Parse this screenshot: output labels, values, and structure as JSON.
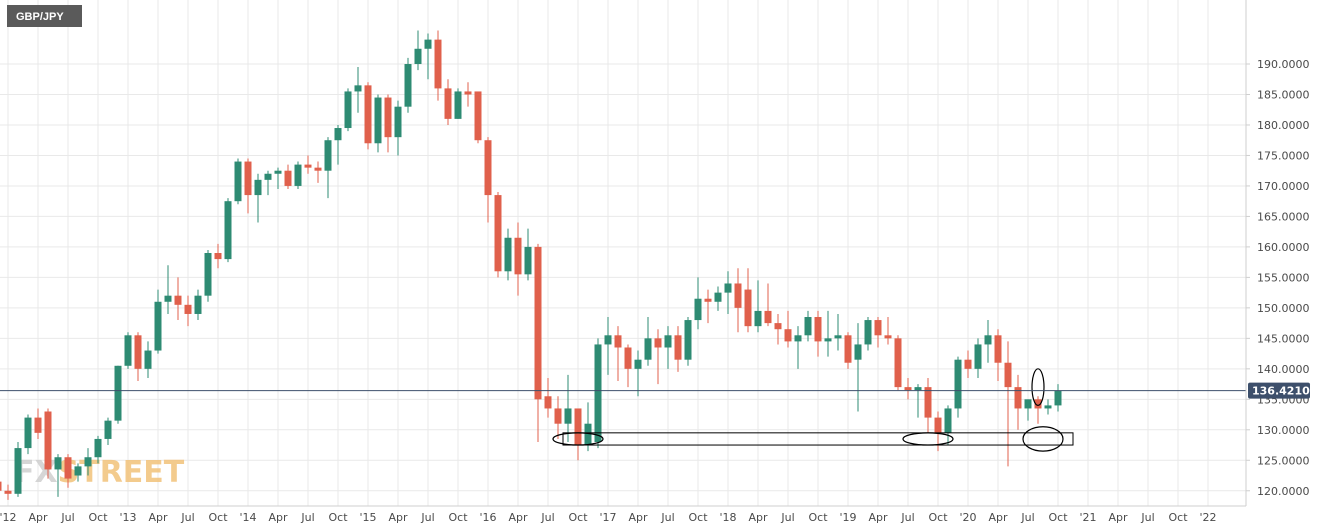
{
  "symbol_label": "GBP/JPY",
  "watermark": {
    "text": "FXSTREET",
    "highlight_color": "#f2c27a",
    "dim_color": "#cfcfcf"
  },
  "colors": {
    "up": "#2e8b73",
    "down": "#e0604c",
    "grid": "#e9e9e9",
    "axis": "#cfcfcf",
    "last_price_line": "#3d4f6b",
    "last_price_bg": "#3d4f6b"
  },
  "chart_data": {
    "type": "candlestick",
    "timeframe": "monthly",
    "symbol": "GBP/JPY",
    "ylim": [
      117.5,
      200.5
    ],
    "y_ticks": [
      "120.0000",
      "125.0000",
      "130.0000",
      "135.0000",
      "140.0000",
      "145.0000",
      "150.0000",
      "155.0000",
      "160.0000",
      "165.0000",
      "170.0000",
      "175.0000",
      "180.0000",
      "185.0000",
      "190.0000"
    ],
    "x_ticks": [
      "'12",
      "Apr",
      "Jul",
      "Oct",
      "'13",
      "Apr",
      "Jul",
      "Oct",
      "'14",
      "Apr",
      "Jul",
      "Oct",
      "'15",
      "Apr",
      "Jul",
      "Oct",
      "'16",
      "Apr",
      "Jul",
      "Oct",
      "'17",
      "Apr",
      "Jul",
      "Oct",
      "'18",
      "Apr",
      "Jul",
      "Oct",
      "'19",
      "Apr",
      "Jul",
      "Oct",
      "'20",
      "Apr",
      "Jul",
      "Oct",
      "'21",
      "Apr",
      "Jul",
      "Oct",
      "'22"
    ],
    "last_price": 136.421,
    "last_price_label": "136.4210",
    "candles": [
      {
        "date": "2011-12",
        "o": 121.5,
        "h": 122.5,
        "l": 117.8,
        "c": 120.0
      },
      {
        "date": "2012-01",
        "o": 120.0,
        "h": 121.0,
        "l": 118.5,
        "c": 119.5
      },
      {
        "date": "2012-02",
        "o": 119.5,
        "h": 128.0,
        "l": 119.0,
        "c": 127.0
      },
      {
        "date": "2012-03",
        "o": 127.0,
        "h": 132.5,
        "l": 126.0,
        "c": 132.0
      },
      {
        "date": "2012-04",
        "o": 132.0,
        "h": 133.5,
        "l": 128.5,
        "c": 129.5
      },
      {
        "date": "2012-05",
        "o": 133.0,
        "h": 133.5,
        "l": 122.0,
        "c": 123.5
      },
      {
        "date": "2012-06",
        "o": 123.5,
        "h": 126.0,
        "l": 119.0,
        "c": 125.5
      },
      {
        "date": "2012-07",
        "o": 125.5,
        "h": 126.0,
        "l": 120.5,
        "c": 122.0
      },
      {
        "date": "2012-08",
        "o": 122.5,
        "h": 124.5,
        "l": 121.5,
        "c": 124.0
      },
      {
        "date": "2012-09",
        "o": 124.0,
        "h": 127.0,
        "l": 122.5,
        "c": 125.5
      },
      {
        "date": "2012-10",
        "o": 125.5,
        "h": 129.0,
        "l": 124.5,
        "c": 128.5
      },
      {
        "date": "2012-11",
        "o": 128.5,
        "h": 132.0,
        "l": 127.5,
        "c": 131.5
      },
      {
        "date": "2012-12",
        "o": 131.5,
        "h": 140.5,
        "l": 131.0,
        "c": 140.5
      },
      {
        "date": "2013-01",
        "o": 140.5,
        "h": 146.0,
        "l": 140.0,
        "c": 145.5
      },
      {
        "date": "2013-02",
        "o": 145.5,
        "h": 146.0,
        "l": 138.0,
        "c": 140.0
      },
      {
        "date": "2013-03",
        "o": 140.0,
        "h": 144.5,
        "l": 138.5,
        "c": 143.0
      },
      {
        "date": "2013-04",
        "o": 143.0,
        "h": 153.0,
        "l": 142.5,
        "c": 151.0
      },
      {
        "date": "2013-05",
        "o": 151.0,
        "h": 157.0,
        "l": 149.0,
        "c": 152.0
      },
      {
        "date": "2013-06",
        "o": 152.0,
        "h": 155.0,
        "l": 148.0,
        "c": 150.5
      },
      {
        "date": "2013-07",
        "o": 150.5,
        "h": 152.0,
        "l": 147.0,
        "c": 149.0
      },
      {
        "date": "2013-08",
        "o": 149.0,
        "h": 153.0,
        "l": 148.0,
        "c": 152.0
      },
      {
        "date": "2013-09",
        "o": 152.0,
        "h": 159.5,
        "l": 151.0,
        "c": 159.0
      },
      {
        "date": "2013-10",
        "o": 159.0,
        "h": 160.5,
        "l": 156.5,
        "c": 158.0
      },
      {
        "date": "2013-11",
        "o": 158.0,
        "h": 168.0,
        "l": 157.5,
        "c": 167.5
      },
      {
        "date": "2013-12",
        "o": 167.5,
        "h": 174.5,
        "l": 167.0,
        "c": 174.0
      },
      {
        "date": "2014-01",
        "o": 174.0,
        "h": 174.5,
        "l": 165.5,
        "c": 168.5
      },
      {
        "date": "2014-02",
        "o": 168.5,
        "h": 172.0,
        "l": 164.0,
        "c": 171.0
      },
      {
        "date": "2014-03",
        "o": 171.0,
        "h": 172.5,
        "l": 168.5,
        "c": 172.0
      },
      {
        "date": "2014-04",
        "o": 172.0,
        "h": 173.0,
        "l": 169.5,
        "c": 172.5
      },
      {
        "date": "2014-05",
        "o": 172.5,
        "h": 173.5,
        "l": 169.5,
        "c": 170.0
      },
      {
        "date": "2014-06",
        "o": 170.0,
        "h": 174.0,
        "l": 169.5,
        "c": 173.5
      },
      {
        "date": "2014-07",
        "o": 173.5,
        "h": 175.0,
        "l": 172.0,
        "c": 173.0
      },
      {
        "date": "2014-08",
        "o": 173.0,
        "h": 174.0,
        "l": 170.5,
        "c": 172.5
      },
      {
        "date": "2014-09",
        "o": 172.5,
        "h": 178.0,
        "l": 168.0,
        "c": 177.5
      },
      {
        "date": "2014-10",
        "o": 177.5,
        "h": 180.0,
        "l": 173.5,
        "c": 179.5
      },
      {
        "date": "2014-11",
        "o": 179.5,
        "h": 186.0,
        "l": 179.0,
        "c": 185.5
      },
      {
        "date": "2014-12",
        "o": 185.5,
        "h": 189.5,
        "l": 182.0,
        "c": 186.5
      },
      {
        "date": "2015-01",
        "o": 186.5,
        "h": 187.0,
        "l": 176.0,
        "c": 177.0
      },
      {
        "date": "2015-02",
        "o": 177.0,
        "h": 185.0,
        "l": 175.5,
        "c": 184.5
      },
      {
        "date": "2015-03",
        "o": 184.5,
        "h": 185.0,
        "l": 175.5,
        "c": 178.0
      },
      {
        "date": "2015-04",
        "o": 178.0,
        "h": 184.0,
        "l": 175.0,
        "c": 183.0
      },
      {
        "date": "2015-05",
        "o": 183.0,
        "h": 191.0,
        "l": 182.0,
        "c": 190.0
      },
      {
        "date": "2015-06",
        "o": 190.0,
        "h": 195.5,
        "l": 189.0,
        "c": 192.5
      },
      {
        "date": "2015-07",
        "o": 192.5,
        "h": 195.0,
        "l": 187.5,
        "c": 194.0
      },
      {
        "date": "2015-08",
        "o": 194.0,
        "h": 195.5,
        "l": 184.0,
        "c": 186.0
      },
      {
        "date": "2015-09",
        "o": 186.0,
        "h": 187.5,
        "l": 180.0,
        "c": 181.0
      },
      {
        "date": "2015-10",
        "o": 181.0,
        "h": 186.0,
        "l": 181.0,
        "c": 185.5
      },
      {
        "date": "2015-11",
        "o": 185.5,
        "h": 187.0,
        "l": 183.0,
        "c": 185.0
      },
      {
        "date": "2015-12",
        "o": 185.5,
        "h": 185.5,
        "l": 177.0,
        "c": 177.5
      },
      {
        "date": "2016-01",
        "o": 177.5,
        "h": 178.0,
        "l": 164.0,
        "c": 168.5
      },
      {
        "date": "2016-02",
        "o": 168.5,
        "h": 169.0,
        "l": 155.0,
        "c": 156.0
      },
      {
        "date": "2016-03",
        "o": 156.0,
        "h": 163.0,
        "l": 154.5,
        "c": 161.5
      },
      {
        "date": "2016-04",
        "o": 161.5,
        "h": 164.0,
        "l": 152.0,
        "c": 155.5
      },
      {
        "date": "2016-05",
        "o": 155.5,
        "h": 163.0,
        "l": 154.5,
        "c": 160.0
      },
      {
        "date": "2016-06",
        "o": 160.0,
        "h": 160.5,
        "l": 128.0,
        "c": 135.0
      },
      {
        "date": "2016-07",
        "o": 135.5,
        "h": 138.5,
        "l": 132.0,
        "c": 133.5
      },
      {
        "date": "2016-08",
        "o": 133.5,
        "h": 135.5,
        "l": 128.5,
        "c": 131.0
      },
      {
        "date": "2016-09",
        "o": 131.0,
        "h": 139.0,
        "l": 128.0,
        "c": 133.5
      },
      {
        "date": "2016-10",
        "o": 133.5,
        "h": 133.5,
        "l": 125.0,
        "c": 127.5
      },
      {
        "date": "2016-11",
        "o": 127.5,
        "h": 134.5,
        "l": 126.5,
        "c": 131.0
      },
      {
        "date": "2016-12",
        "o": 128.0,
        "h": 145.0,
        "l": 127.0,
        "c": 144.0
      },
      {
        "date": "2017-01",
        "o": 144.0,
        "h": 148.5,
        "l": 139.0,
        "c": 145.5
      },
      {
        "date": "2017-02",
        "o": 145.5,
        "h": 147.0,
        "l": 138.0,
        "c": 143.5
      },
      {
        "date": "2017-03",
        "o": 143.5,
        "h": 144.0,
        "l": 137.0,
        "c": 140.0
      },
      {
        "date": "2017-04",
        "o": 140.0,
        "h": 143.0,
        "l": 135.5,
        "c": 141.5
      },
      {
        "date": "2017-05",
        "o": 141.5,
        "h": 148.5,
        "l": 140.5,
        "c": 145.0
      },
      {
        "date": "2017-06",
        "o": 145.0,
        "h": 146.5,
        "l": 137.5,
        "c": 143.5
      },
      {
        "date": "2017-07",
        "o": 143.5,
        "h": 147.0,
        "l": 140.0,
        "c": 145.5
      },
      {
        "date": "2017-08",
        "o": 145.5,
        "h": 147.0,
        "l": 139.5,
        "c": 141.5
      },
      {
        "date": "2017-09",
        "o": 141.5,
        "h": 148.5,
        "l": 140.5,
        "c": 148.0
      },
      {
        "date": "2017-10",
        "o": 148.0,
        "h": 155.0,
        "l": 146.5,
        "c": 151.5
      },
      {
        "date": "2017-11",
        "o": 151.5,
        "h": 153.0,
        "l": 147.5,
        "c": 151.0
      },
      {
        "date": "2017-12",
        "o": 151.0,
        "h": 153.5,
        "l": 149.5,
        "c": 152.5
      },
      {
        "date": "2018-01",
        "o": 152.5,
        "h": 156.0,
        "l": 149.0,
        "c": 154.0
      },
      {
        "date": "2018-02",
        "o": 154.0,
        "h": 156.5,
        "l": 146.0,
        "c": 150.0
      },
      {
        "date": "2018-03",
        "o": 153.0,
        "h": 156.5,
        "l": 146.0,
        "c": 147.0
      },
      {
        "date": "2018-04",
        "o": 147.0,
        "h": 154.5,
        "l": 146.0,
        "c": 149.5
      },
      {
        "date": "2018-05",
        "o": 149.5,
        "h": 154.0,
        "l": 147.0,
        "c": 147.5
      },
      {
        "date": "2018-06",
        "o": 147.5,
        "h": 149.0,
        "l": 144.0,
        "c": 146.5
      },
      {
        "date": "2018-07",
        "o": 146.5,
        "h": 149.5,
        "l": 143.5,
        "c": 144.5
      },
      {
        "date": "2018-08",
        "o": 144.5,
        "h": 147.0,
        "l": 140.0,
        "c": 145.5
      },
      {
        "date": "2018-09",
        "o": 145.5,
        "h": 149.5,
        "l": 144.5,
        "c": 148.5
      },
      {
        "date": "2018-10",
        "o": 148.5,
        "h": 149.5,
        "l": 142.0,
        "c": 144.5
      },
      {
        "date": "2018-11",
        "o": 144.5,
        "h": 149.5,
        "l": 142.0,
        "c": 145.0
      },
      {
        "date": "2018-12",
        "o": 145.0,
        "h": 149.0,
        "l": 143.0,
        "c": 145.5
      },
      {
        "date": "2019-01",
        "o": 145.5,
        "h": 146.0,
        "l": 140.0,
        "c": 141.0
      },
      {
        "date": "2019-02",
        "o": 141.5,
        "h": 147.5,
        "l": 133.0,
        "c": 144.0
      },
      {
        "date": "2019-03",
        "o": 144.0,
        "h": 148.5,
        "l": 143.0,
        "c": 148.0
      },
      {
        "date": "2019-04",
        "o": 148.0,
        "h": 148.5,
        "l": 143.5,
        "c": 145.5
      },
      {
        "date": "2019-05",
        "o": 145.5,
        "h": 148.5,
        "l": 144.0,
        "c": 145.0
      },
      {
        "date": "2019-06",
        "o": 145.0,
        "h": 145.5,
        "l": 136.5,
        "c": 137.0
      },
      {
        "date": "2019-07",
        "o": 137.0,
        "h": 138.5,
        "l": 135.0,
        "c": 136.5
      },
      {
        "date": "2019-08",
        "o": 136.5,
        "h": 137.5,
        "l": 132.0,
        "c": 137.0
      },
      {
        "date": "2019-09",
        "o": 137.0,
        "h": 138.5,
        "l": 129.5,
        "c": 132.0
      },
      {
        "date": "2019-10",
        "o": 132.0,
        "h": 133.0,
        "l": 126.5,
        "c": 129.5
      },
      {
        "date": "2019-11",
        "o": 129.5,
        "h": 134.0,
        "l": 127.5,
        "c": 133.5
      },
      {
        "date": "2019-12",
        "o": 133.5,
        "h": 142.0,
        "l": 132.0,
        "c": 141.5
      },
      {
        "date": "2020-01",
        "o": 141.5,
        "h": 143.0,
        "l": 138.5,
        "c": 140.0
      },
      {
        "date": "2020-02",
        "o": 140.0,
        "h": 145.0,
        "l": 138.5,
        "c": 144.0
      },
      {
        "date": "2020-03",
        "o": 144.0,
        "h": 148.0,
        "l": 141.0,
        "c": 145.5
      },
      {
        "date": "2020-04",
        "o": 145.5,
        "h": 146.5,
        "l": 138.0,
        "c": 141.0
      },
      {
        "date": "2020-05",
        "o": 141.0,
        "h": 144.5,
        "l": 124.0,
        "c": 137.0
      },
      {
        "date": "2020-06",
        "o": 137.0,
        "h": 139.0,
        "l": 130.0,
        "c": 133.5
      },
      {
        "date": "2020-07",
        "o": 133.5,
        "h": 135.0,
        "l": 131.5,
        "c": 135.0
      },
      {
        "date": "2020-08",
        "o": 135.0,
        "h": 135.5,
        "l": 131.0,
        "c": 133.5
      },
      {
        "date": "2020-09",
        "o": 133.5,
        "h": 135.0,
        "l": 132.5,
        "c": 134.0
      },
      {
        "date": "2020-10",
        "o": 134.0,
        "h": 137.5,
        "l": 133.0,
        "c": 136.4
      }
    ],
    "annotations": [
      {
        "shape": "rectangle",
        "x_start": "2016-09",
        "x_end": "2020-11",
        "y_low": 127.5,
        "y_high": 129.5
      },
      {
        "shape": "ellipse",
        "x_start": "2016-08",
        "x_end": "2016-12",
        "y_low": 127.5,
        "y_high": 129.5
      },
      {
        "shape": "ellipse",
        "x_start": "2019-07",
        "x_end": "2019-11",
        "y_low": 127.5,
        "y_high": 129.5
      },
      {
        "shape": "ellipse",
        "x_start": "2020-07",
        "x_end": "2020-10",
        "y_low": 126.5,
        "y_high": 130.5
      },
      {
        "shape": "ellipse",
        "x_start": "2020-08",
        "x_end": "2020-08",
        "y_low": 134.0,
        "y_high": 140.0
      }
    ]
  }
}
